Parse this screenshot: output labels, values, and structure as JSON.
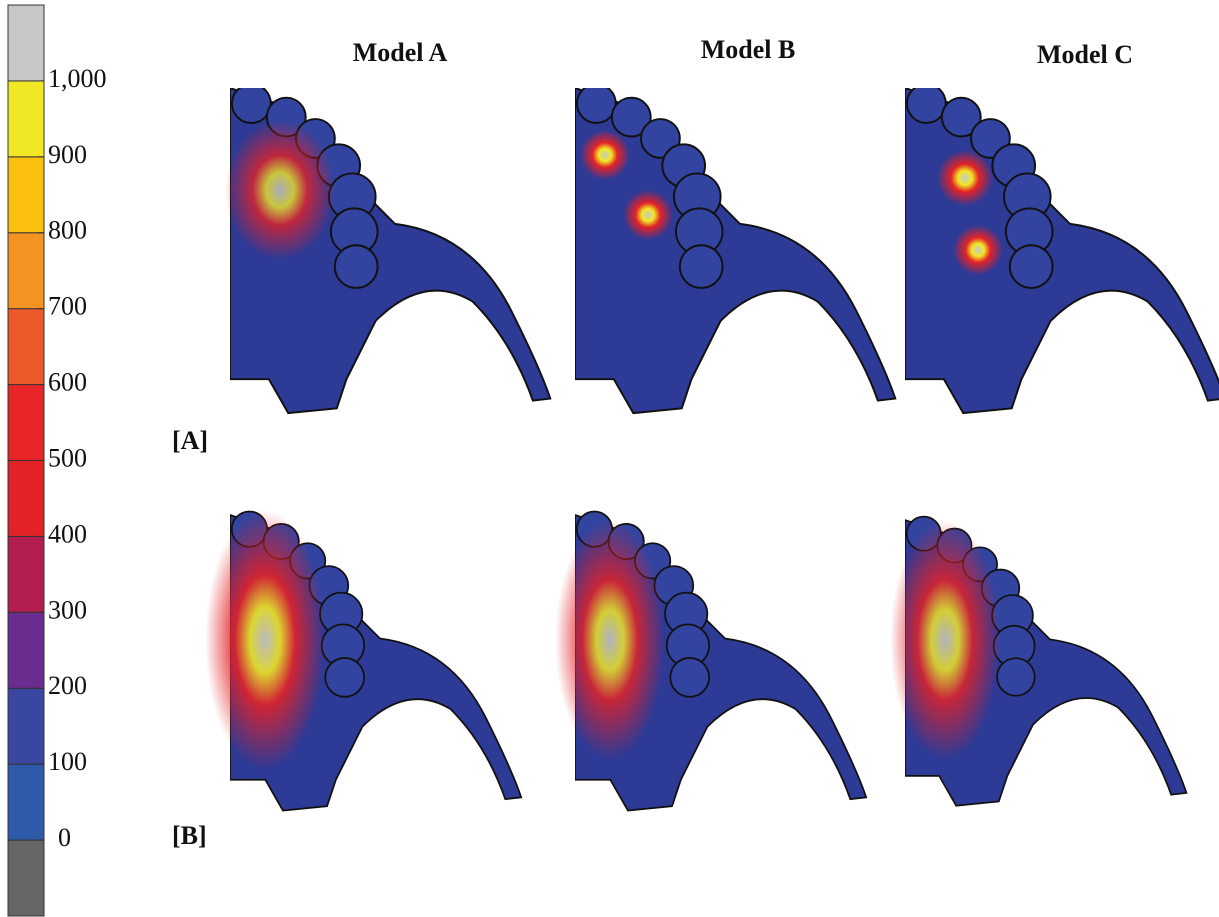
{
  "colorbar": {
    "labels": [
      "0",
      "100",
      "200",
      "300",
      "400",
      "500",
      "600",
      "700",
      "800",
      "900",
      "1,000"
    ],
    "colors": [
      "#666666",
      "#2f5aaa",
      "#3a47a0",
      "#6a2c8e",
      "#b21f4e",
      "#e32228",
      "#e8262a",
      "#ec5a2c",
      "#f59322",
      "#fcc010",
      "#f0e826",
      "#c8c8c8"
    ]
  },
  "columns": [
    "Model A",
    "Model B",
    "Model C"
  ],
  "rows": [
    "[A]",
    "[B]"
  ]
}
